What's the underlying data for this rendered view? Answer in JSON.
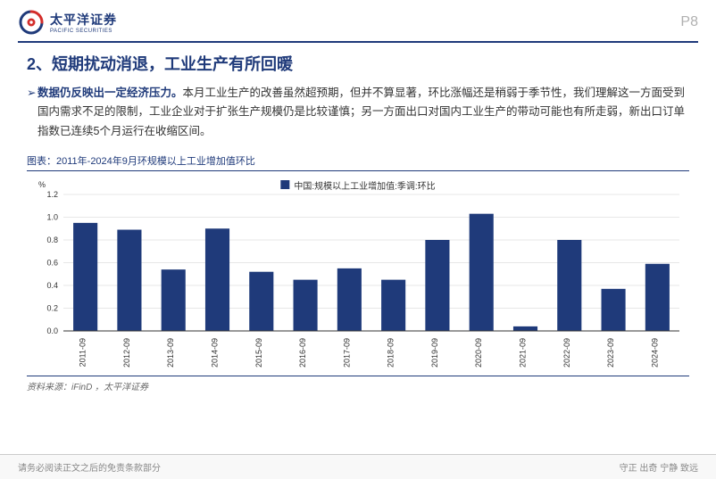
{
  "header": {
    "logo_cn": "太平洋证券",
    "logo_en": "PACIFIC SECURITIES",
    "page_label": "P8"
  },
  "section": {
    "title": "2、短期扰动消退，工业生产有所回暖",
    "para_lead": "数据仍反映出一定经济压力。",
    "para_body": "本月工业生产的改善虽然超预期，但并不算显著，环比涨幅还是稍弱于季节性，我们理解这一方面受到国内需求不足的限制，工业企业对于扩张生产规模仍是比较谨慎；另一方面出口对国内工业生产的带动可能也有所走弱，新出口订单指数已连续5个月运行在收缩区间。"
  },
  "chart": {
    "type": "bar",
    "title": "图表：2011年-2024年9月环规模以上工业增加值环比",
    "legend_label": "中国:规模以上工业增加值:季调:环比",
    "y_axis_label": "%",
    "categories": [
      "2011-09",
      "2012-09",
      "2013-09",
      "2014-09",
      "2015-09",
      "2016-09",
      "2017-09",
      "2018-09",
      "2019-09",
      "2020-09",
      "2021-09",
      "2022-09",
      "2023-09",
      "2024-09"
    ],
    "values": [
      0.95,
      0.89,
      0.54,
      0.9,
      0.52,
      0.45,
      0.55,
      0.45,
      0.8,
      1.03,
      0.04,
      0.8,
      0.37,
      0.59
    ],
    "ylim": [
      0,
      1.2
    ],
    "ytick_step": 0.2,
    "bar_color": "#1f3a7a",
    "grid_color": "#d0d0d0",
    "axis_color": "#333333",
    "background_color": "#ffffff",
    "bar_width": 0.55,
    "label_fontsize": 9,
    "tick_fontsize": 9,
    "source": "资料来源：iFinD ，太平洋证券"
  },
  "footer": {
    "left": "请务必阅读正文之后的免责条款部分",
    "right": "守正  出奇  宁静  致远"
  },
  "colors": {
    "brand_blue": "#1f3a7a",
    "brand_red": "#d32d2a",
    "text": "#333333",
    "muted": "#888888",
    "page_num": "#b0b0b0"
  }
}
